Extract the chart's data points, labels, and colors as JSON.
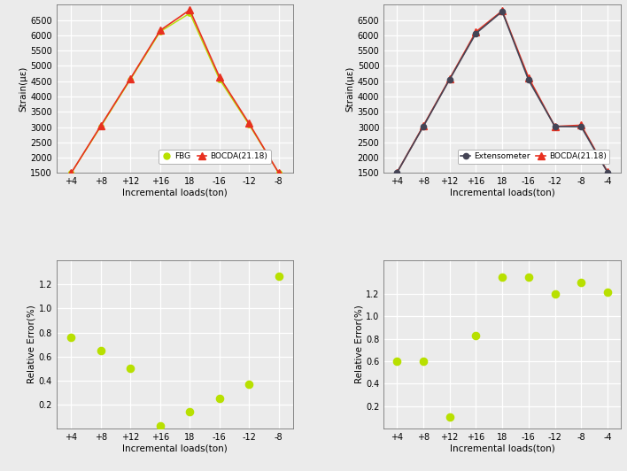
{
  "top_left": {
    "x_labels": [
      "+4",
      "+8",
      "+12",
      "+16",
      "18",
      "-16",
      "-12",
      "-8"
    ],
    "fbg_values": [
      1500,
      3020,
      4560,
      6120,
      6720,
      4560,
      3080,
      1500
    ],
    "bocda_values": [
      1500,
      3050,
      4590,
      6160,
      6830,
      4640,
      3120,
      1500
    ],
    "ylabel": "Strain(με)",
    "xlabel": "Incremental loads(ton)",
    "ylim": [
      1500,
      7000
    ],
    "yticks": [
      1500,
      2000,
      2500,
      3000,
      3500,
      4000,
      4500,
      5000,
      5500,
      6000,
      6500
    ],
    "fbg_color": "#b8e000",
    "bocda_color": "#e83020",
    "legend_fbg": "FBG",
    "legend_bocda": "BOCDA(21.18)"
  },
  "top_right": {
    "x_labels": [
      "+4",
      "+8",
      "+12",
      "+16",
      "18",
      "-16",
      "-12",
      "-8",
      "-4"
    ],
    "ext_values": [
      1500,
      3010,
      4550,
      6060,
      6780,
      4540,
      3020,
      3010,
      1520
    ],
    "bocda_values": [
      1500,
      3030,
      4570,
      6110,
      6800,
      4620,
      3020,
      3060,
      1530
    ],
    "ylabel": "Strain(με)",
    "xlabel": "Incremental loads(ton)",
    "ylim": [
      1500,
      7000
    ],
    "yticks": [
      1500,
      2000,
      2500,
      3000,
      3500,
      4000,
      4500,
      5000,
      5500,
      6000,
      6500
    ],
    "ext_color": "#444455",
    "bocda_color": "#e83020",
    "legend_ext": "Extensometer",
    "legend_bocda": "BOCDA(21.18)"
  },
  "bot_left": {
    "x_labels": [
      "+4",
      "+8",
      "+12",
      "+16",
      "18",
      "-16",
      "-12",
      "-8"
    ],
    "re_values": [
      0.76,
      0.65,
      0.5,
      0.02,
      0.14,
      0.25,
      0.37,
      1.27
    ],
    "ylabel": "Relative Error(%)",
    "xlabel": "Incremental loads(ton)",
    "ylim": [
      0,
      1.4
    ],
    "yticks": [
      0.2,
      0.4,
      0.6,
      0.8,
      1.0,
      1.2
    ],
    "dot_color": "#b8e000"
  },
  "bot_right": {
    "x_labels": [
      "+4",
      "+8",
      "+12",
      "+16",
      "18",
      "-16",
      "-12",
      "-8",
      "-4"
    ],
    "re_values": [
      0.6,
      0.6,
      0.1,
      0.83,
      1.35,
      1.35,
      1.2,
      1.3,
      1.22
    ],
    "ylabel": "Relative Error(%)",
    "xlabel": "Incremental loads(ton)",
    "ylim": [
      0,
      1.5
    ],
    "yticks": [
      0.2,
      0.4,
      0.6,
      0.8,
      1.0,
      1.2
    ],
    "dot_color": "#b8e000"
  },
  "bg_color": "#ebebeb",
  "grid_color": "#ffffff",
  "axes_bg": "#ebebeb",
  "tick_fontsize": 7,
  "label_fontsize": 7.5,
  "legend_fontsize": 6.5
}
